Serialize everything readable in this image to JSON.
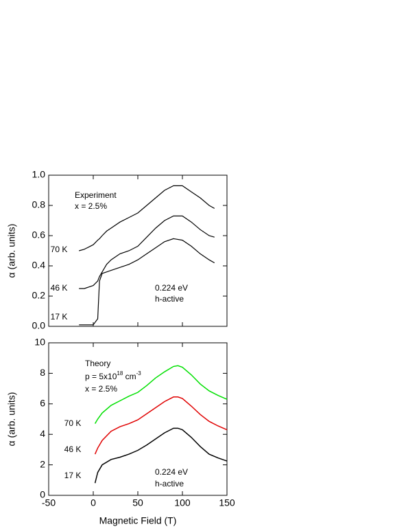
{
  "chart_data": [
    {
      "type": "line",
      "ylabel": "α (arb. units)",
      "annotations": [
        "Experiment",
        "x = 2.5%",
        "0.224 eV",
        "h-active"
      ],
      "xlim": [
        -50,
        150
      ],
      "xticks": [
        -50,
        0,
        50,
        100,
        150
      ],
      "ylim": [
        0,
        1
      ],
      "yticks": [
        {
          "value": 0,
          "label": "0.0"
        },
        {
          "value": 0.2,
          "label": "0.2"
        },
        {
          "value": 0.4,
          "label": "0.4"
        },
        {
          "value": 0.6,
          "label": "0.6"
        },
        {
          "value": 0.8,
          "label": "0.8"
        },
        {
          "value": 1,
          "label": "1.0"
        }
      ],
      "x": [
        -16,
        -10,
        0,
        5,
        7,
        10,
        15,
        20,
        30,
        40,
        50,
        60,
        70,
        80,
        90,
        100,
        110,
        120,
        130,
        136
      ],
      "series": [
        {
          "name": "70 K",
          "color": "#000000",
          "values": [
            0.5,
            0.51,
            0.54,
            0.57,
            0.58,
            0.6,
            0.63,
            0.65,
            0.69,
            0.72,
            0.75,
            0.8,
            0.85,
            0.9,
            0.93,
            0.93,
            0.89,
            0.85,
            0.8,
            0.78
          ]
        },
        {
          "name": "46 K",
          "color": "#000000",
          "values": [
            0.25,
            0.25,
            0.27,
            0.3,
            0.33,
            0.36,
            0.41,
            0.44,
            0.48,
            0.5,
            0.53,
            0.59,
            0.65,
            0.7,
            0.73,
            0.73,
            0.69,
            0.64,
            0.6,
            0.59
          ]
        },
        {
          "name": "17 K",
          "color": "#000000",
          "values": [
            0.01,
            0.01,
            0.01,
            0.05,
            0.3,
            0.35,
            0.36,
            0.37,
            0.39,
            0.41,
            0.44,
            0.48,
            0.52,
            0.56,
            0.58,
            0.57,
            0.53,
            0.48,
            0.44,
            0.42
          ]
        }
      ]
    },
    {
      "type": "line",
      "ylabel": "α (arb. units)",
      "xlabel": "Magnetic Field (T)",
      "annotations": [
        "Theory",
        [
          "p = 5x10",
          "18",
          " cm",
          "-3"
        ],
        "x = 2.5%",
        "0.224 eV",
        "h-active"
      ],
      "xlim": [
        -50,
        150
      ],
      "xticks": [
        -50,
        0,
        50,
        100,
        150
      ],
      "ylim": [
        0,
        10
      ],
      "yticks": [
        0,
        2,
        4,
        6,
        8,
        10
      ],
      "x": [
        2,
        5,
        10,
        20,
        30,
        40,
        50,
        60,
        70,
        80,
        90,
        95,
        100,
        110,
        120,
        130,
        140,
        150
      ],
      "series": [
        {
          "name": "70 K",
          "color": "#00e000",
          "values": [
            4.7,
            5.0,
            5.4,
            5.9,
            6.2,
            6.5,
            6.75,
            7.2,
            7.7,
            8.1,
            8.45,
            8.5,
            8.4,
            7.9,
            7.3,
            6.85,
            6.55,
            6.3
          ]
        },
        {
          "name": "46 K",
          "color": "#e00000",
          "values": [
            2.7,
            3.1,
            3.6,
            4.2,
            4.5,
            4.7,
            4.95,
            5.35,
            5.75,
            6.15,
            6.45,
            6.45,
            6.35,
            5.85,
            5.3,
            4.85,
            4.55,
            4.3
          ]
        },
        {
          "name": "17 K",
          "color": "#000000",
          "values": [
            0.8,
            1.5,
            2.0,
            2.35,
            2.5,
            2.7,
            2.95,
            3.3,
            3.7,
            4.1,
            4.4,
            4.4,
            4.3,
            3.8,
            3.2,
            2.7,
            2.45,
            2.25
          ]
        }
      ]
    }
  ]
}
